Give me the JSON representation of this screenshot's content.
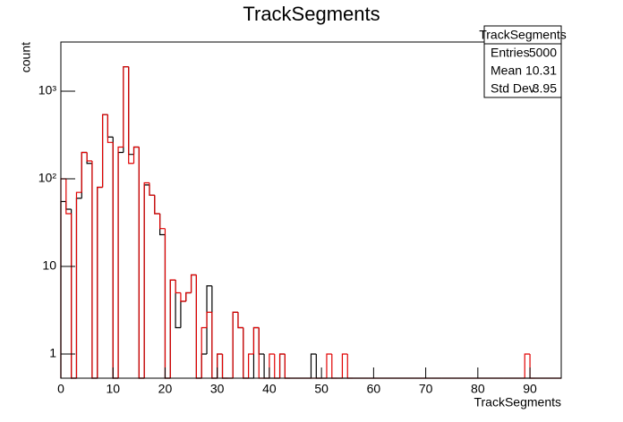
{
  "chart_data": {
    "type": "histogram",
    "title": "TrackSegments",
    "x_label": "TrackSegments",
    "y_label": "count",
    "bins": [
      0,
      1,
      2,
      3,
      4,
      5,
      6,
      7,
      8,
      9,
      10,
      11,
      12,
      13,
      14,
      15,
      16,
      17,
      18,
      19,
      20,
      21,
      22,
      23,
      24,
      25,
      26,
      27,
      28,
      29,
      30,
      31,
      32,
      33,
      34,
      35,
      36,
      37,
      38,
      39,
      40,
      41,
      42,
      43,
      44,
      45,
      46,
      47,
      48,
      49,
      50,
      51,
      52,
      53,
      54,
      55,
      56,
      57,
      58,
      59,
      60,
      61,
      62,
      63,
      64,
      65,
      66,
      67,
      68,
      69,
      70,
      71,
      72,
      73,
      74,
      75,
      76,
      77,
      78,
      79,
      80,
      81,
      82,
      83,
      84,
      85,
      86,
      87,
      88,
      89,
      90,
      91,
      92,
      93,
      94,
      95,
      96
    ],
    "series": [
      {
        "color": "#000000",
        "values": [
          55,
          45,
          0,
          60,
          200,
          150,
          0,
          80,
          540,
          300,
          0,
          200,
          1900,
          190,
          230,
          0,
          85,
          65,
          40,
          23,
          0,
          7,
          2,
          4,
          5,
          8,
          0,
          1,
          6,
          0,
          1,
          0,
          0,
          3,
          2,
          0,
          0,
          2,
          1,
          0,
          0,
          0,
          1,
          0,
          0,
          0,
          0,
          0,
          1,
          0,
          0,
          0,
          0,
          0,
          0,
          0,
          0,
          0,
          0,
          0,
          0,
          0,
          0,
          0,
          0,
          0,
          0,
          0,
          0,
          0,
          0,
          0,
          0,
          0,
          0,
          0,
          0,
          0,
          0,
          0,
          0,
          0,
          0,
          0,
          0,
          0,
          0,
          0,
          0,
          0,
          0,
          0,
          0,
          0,
          0,
          0
        ]
      },
      {
        "color": "#e00000",
        "values": [
          100,
          40,
          0,
          70,
          200,
          160,
          0,
          80,
          540,
          260,
          0,
          230,
          1900,
          150,
          230,
          0,
          90,
          65,
          40,
          27,
          0,
          7,
          5,
          4,
          5,
          8,
          0,
          2,
          3,
          0,
          1,
          0,
          0,
          3,
          2,
          0,
          1,
          2,
          0,
          0,
          1,
          0,
          1,
          0,
          0,
          0,
          0,
          0,
          0,
          0,
          0,
          1,
          0,
          0,
          1,
          0,
          0,
          0,
          0,
          0,
          0,
          0,
          0,
          0,
          0,
          0,
          0,
          0,
          0,
          0,
          0,
          0,
          0,
          0,
          0,
          0,
          0,
          0,
          0,
          0,
          0,
          0,
          0,
          0,
          0,
          0,
          0,
          0,
          0,
          1,
          0,
          0,
          0,
          0,
          0,
          0
        ]
      }
    ],
    "xlim": [
      0,
      96
    ],
    "xticks": [
      0,
      10,
      20,
      30,
      40,
      50,
      60,
      70,
      80,
      90
    ],
    "ylim": [
      0.53,
      3640
    ],
    "yticks": [
      1,
      10,
      {
        "value": 100,
        "label": "10²"
      },
      {
        "value": 1000,
        "label": "10³"
      }
    ],
    "log_y": true,
    "stats": {
      "title": "TrackSegments",
      "rows": [
        [
          "Entries",
          "5000"
        ],
        [
          "Mean",
          "10.31"
        ],
        [
          "Std Dev",
          "3.95"
        ]
      ]
    }
  }
}
